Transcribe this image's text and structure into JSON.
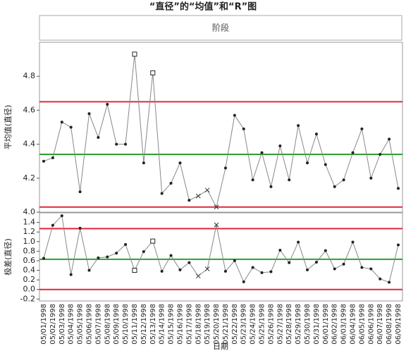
{
  "chart_data": {
    "type": "control",
    "title": "“直径”的“均值”和“R”图",
    "phase_label": "阶段",
    "x_label": "日期",
    "line_color": "#888888",
    "ucl_color": "#e0283c",
    "center_color": "#2ca02c",
    "categories": [
      "05/01/1998",
      "05/02/1998",
      "05/03/1998",
      "05/04/1998",
      "05/05/1998",
      "05/06/1998",
      "05/07/1998",
      "05/08/1998",
      "05/09/1998",
      "05/10/1998",
      "05/11/1998",
      "05/12/1998",
      "05/13/1998",
      "05/14/1998",
      "05/15/1998",
      "05/16/1998",
      "05/17/1998",
      "05/18/1998",
      "05/19/1998",
      "05/20/1998",
      "05/21/1998",
      "05/22/1998",
      "05/23/1998",
      "05/24/1998",
      "05/25/1998",
      "05/26/1998",
      "05/27/1998",
      "05/28/1998",
      "05/29/1998",
      "05/30/1998",
      "05/31/1998",
      "06/01/1998",
      "06/02/1998",
      "06/03/1998",
      "06/04/1998",
      "06/05/1998",
      "06/06/1998",
      "06/07/1998",
      "06/08/1998",
      "06/09/1998"
    ],
    "panels": [
      {
        "y_label": "平均值(直径)",
        "ylim": [
          4.0,
          5.0
        ],
        "yticks": [
          {
            "value": 4.0,
            "label": "4.0"
          },
          4.2,
          4.4,
          4.6,
          4.8
        ],
        "limits": {
          "ucl": 4.65,
          "center": 4.34,
          "lcl": 4.03
        },
        "values": [
          4.3,
          4.32,
          4.53,
          4.5,
          4.12,
          4.58,
          4.44,
          4.635,
          4.4,
          4.4,
          4.93,
          4.29,
          4.82,
          4.11,
          4.17,
          4.29,
          4.07,
          4.095,
          4.13,
          4.03,
          4.26,
          4.57,
          4.49,
          4.19,
          4.35,
          4.15,
          4.39,
          4.19,
          4.51,
          4.29,
          4.46,
          4.28,
          4.15,
          4.19,
          4.35,
          4.49,
          4.2,
          4.34,
          4.43,
          4.14
        ],
        "markers": [
          "dot",
          "dot",
          "dot",
          "dot",
          "dot",
          "dot",
          "dot",
          "dot",
          "dot",
          "dot",
          "square",
          "dot",
          "square",
          "dot",
          "dot",
          "dot",
          "dot",
          "cross",
          "cross",
          "cross",
          "dot",
          "dot",
          "dot",
          "dot",
          "dot",
          "dot",
          "dot",
          "dot",
          "dot",
          "dot",
          "dot",
          "dot",
          "dot",
          "dot",
          "dot",
          "dot",
          "dot",
          "dot",
          "dot",
          "dot"
        ]
      },
      {
        "y_label": "极差(直径)",
        "ylim": [
          -0.24,
          1.6
        ],
        "yticks": [
          -0.2,
          {
            "value": 0.0,
            "label": "0.0"
          },
          0.2,
          0.4,
          0.6,
          0.8,
          {
            "value": 1.0,
            "label": "1.0"
          },
          1.2,
          1.4
        ],
        "limits": {
          "ucl": 1.27,
          "center": 0.63,
          "lcl": 0.0
        },
        "values": [
          0.65,
          1.34,
          1.54,
          0.31,
          1.28,
          0.4,
          0.66,
          0.68,
          0.76,
          0.94,
          0.4,
          0.79,
          1.01,
          0.38,
          0.71,
          0.41,
          0.56,
          0.28,
          0.43,
          1.35,
          0.38,
          0.6,
          0.16,
          0.46,
          0.35,
          0.37,
          0.82,
          0.56,
          0.99,
          0.41,
          0.57,
          0.81,
          0.43,
          0.53,
          0.99,
          0.46,
          0.43,
          0.22,
          0.15,
          0.93
        ],
        "markers": [
          "dot",
          "dot",
          "dot",
          "dot",
          "dot",
          "dot",
          "dot",
          "dot",
          "dot",
          "dot",
          "square",
          "dot",
          "square",
          "dot",
          "dot",
          "dot",
          "dot",
          "cross",
          "cross",
          "cross",
          "dot",
          "dot",
          "dot",
          "dot",
          "dot",
          "dot",
          "dot",
          "dot",
          "dot",
          "dot",
          "dot",
          "dot",
          "dot",
          "dot",
          "dot",
          "dot",
          "dot",
          "dot",
          "dot",
          "dot"
        ]
      }
    ]
  }
}
